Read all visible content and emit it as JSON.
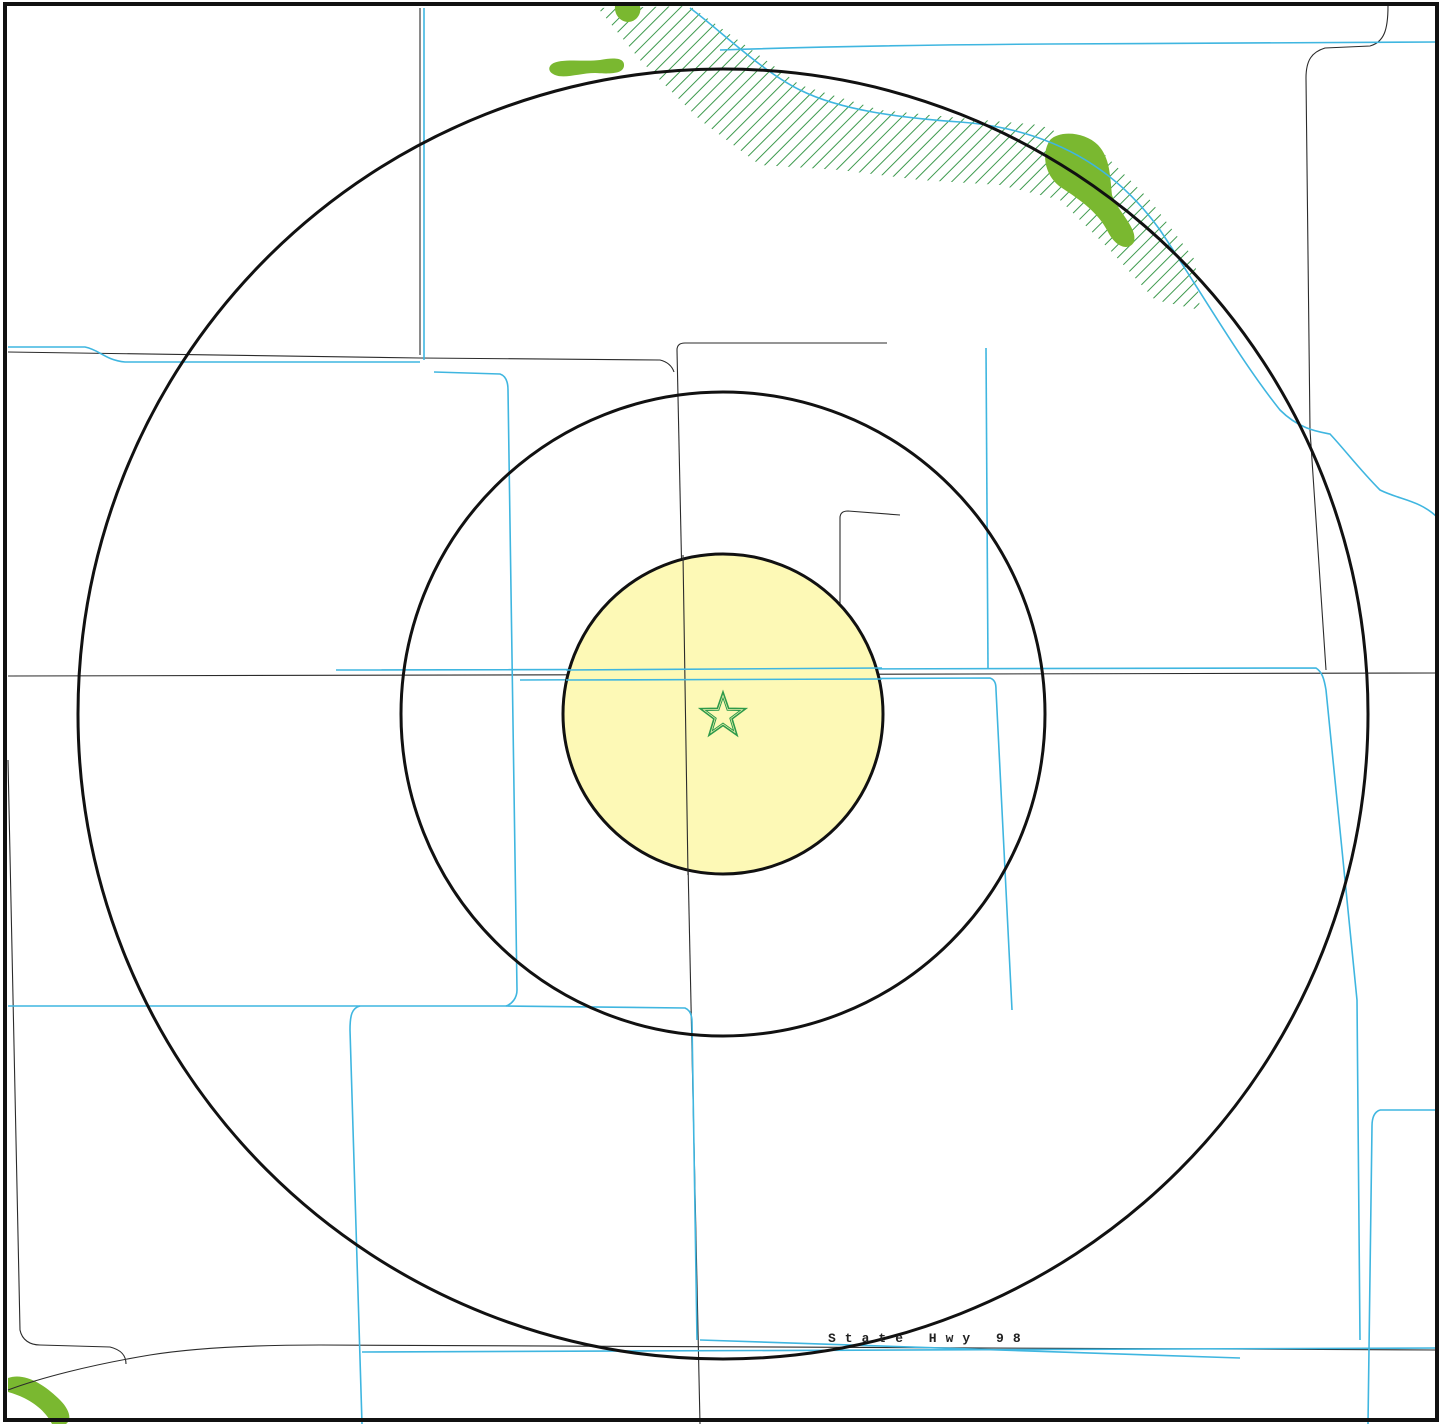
{
  "map": {
    "highway_label": "State Hwy 98",
    "marker_icon": "star-icon",
    "colors": {
      "frame": "#111111",
      "road": "#2b2b2b",
      "waterway": "#3fb6e0",
      "inner_zone_fill": "#fdf9b6",
      "wetland_fill": "#7ab830",
      "wetland_hatch": "#3e9a4e",
      "marker": "#2e9a4a"
    }
  }
}
